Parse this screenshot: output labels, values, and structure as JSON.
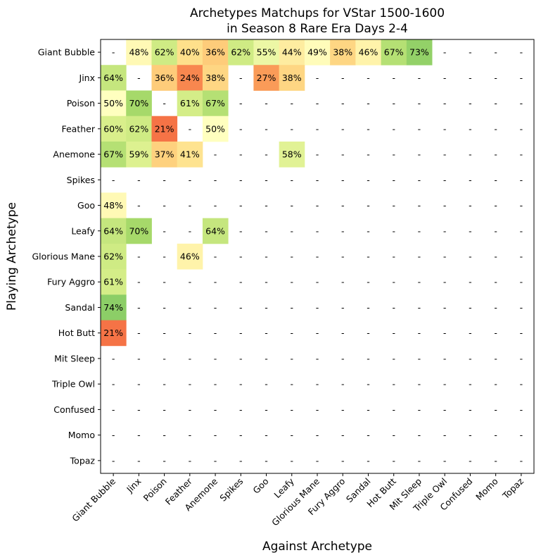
{
  "chart_data": {
    "type": "heatmap",
    "title_lines": [
      "Archetypes Matchups for VStar 1500-1600",
      "in Season 8 Rare Era Days 2-4"
    ],
    "xlabel": "Against Archetype",
    "ylabel": "Playing Archetype",
    "rows": [
      "Giant Bubble",
      "Jinx",
      "Poison",
      "Feather",
      "Anemone",
      "Spikes",
      "Goo",
      "Leafy",
      "Glorious Mane",
      "Fury Aggro",
      "Sandal",
      "Hot Butt",
      "Mit Sleep",
      "Triple Owl",
      "Confused",
      "Momo",
      "Topaz"
    ],
    "columns": [
      "Giant Bubble",
      "Jinx",
      "Poison",
      "Feather",
      "Anemone",
      "Spikes",
      "Goo",
      "Leafy",
      "Glorious Mane",
      "Fury Aggro",
      "Sandal",
      "Hot Butt",
      "Mit Sleep",
      "Triple Owl",
      "Confused",
      "Momo",
      "Topaz"
    ],
    "empty_marker": "-",
    "value_unit": "%",
    "values": [
      [
        null,
        48,
        62,
        40,
        36,
        62,
        55,
        44,
        49,
        38,
        46,
        67,
        73,
        null,
        null,
        null,
        null
      ],
      [
        64,
        null,
        36,
        24,
        38,
        null,
        27,
        38,
        null,
        null,
        null,
        null,
        null,
        null,
        null,
        null,
        null
      ],
      [
        50,
        70,
        null,
        61,
        67,
        null,
        null,
        null,
        null,
        null,
        null,
        null,
        null,
        null,
        null,
        null,
        null
      ],
      [
        60,
        62,
        21,
        null,
        50,
        null,
        null,
        null,
        null,
        null,
        null,
        null,
        null,
        null,
        null,
        null,
        null
      ],
      [
        67,
        59,
        37,
        41,
        null,
        null,
        null,
        58,
        null,
        null,
        null,
        null,
        null,
        null,
        null,
        null,
        null
      ],
      [
        null,
        null,
        null,
        null,
        null,
        null,
        null,
        null,
        null,
        null,
        null,
        null,
        null,
        null,
        null,
        null,
        null
      ],
      [
        48,
        null,
        null,
        null,
        null,
        null,
        null,
        null,
        null,
        null,
        null,
        null,
        null,
        null,
        null,
        null,
        null
      ],
      [
        64,
        70,
        null,
        null,
        64,
        null,
        null,
        null,
        null,
        null,
        null,
        null,
        null,
        null,
        null,
        null,
        null
      ],
      [
        62,
        null,
        null,
        46,
        null,
        null,
        null,
        null,
        null,
        null,
        null,
        null,
        null,
        null,
        null,
        null,
        null
      ],
      [
        61,
        null,
        null,
        null,
        null,
        null,
        null,
        null,
        null,
        null,
        null,
        null,
        null,
        null,
        null,
        null,
        null
      ],
      [
        74,
        null,
        null,
        null,
        null,
        null,
        null,
        null,
        null,
        null,
        null,
        null,
        null,
        null,
        null,
        null,
        null
      ],
      [
        21,
        null,
        null,
        null,
        null,
        null,
        null,
        null,
        null,
        null,
        null,
        null,
        null,
        null,
        null,
        null,
        null
      ],
      [
        null,
        null,
        null,
        null,
        null,
        null,
        null,
        null,
        null,
        null,
        null,
        null,
        null,
        null,
        null,
        null,
        null
      ],
      [
        null,
        null,
        null,
        null,
        null,
        null,
        null,
        null,
        null,
        null,
        null,
        null,
        null,
        null,
        null,
        null,
        null
      ],
      [
        null,
        null,
        null,
        null,
        null,
        null,
        null,
        null,
        null,
        null,
        null,
        null,
        null,
        null,
        null,
        null,
        null
      ],
      [
        null,
        null,
        null,
        null,
        null,
        null,
        null,
        null,
        null,
        null,
        null,
        null,
        null,
        null,
        null,
        null,
        null
      ],
      [
        null,
        null,
        null,
        null,
        null,
        null,
        null,
        null,
        null,
        null,
        null,
        null,
        null,
        null,
        null,
        null,
        null
      ]
    ],
    "colormap": "RdYlGn",
    "color_range": [
      0,
      100
    ]
  }
}
